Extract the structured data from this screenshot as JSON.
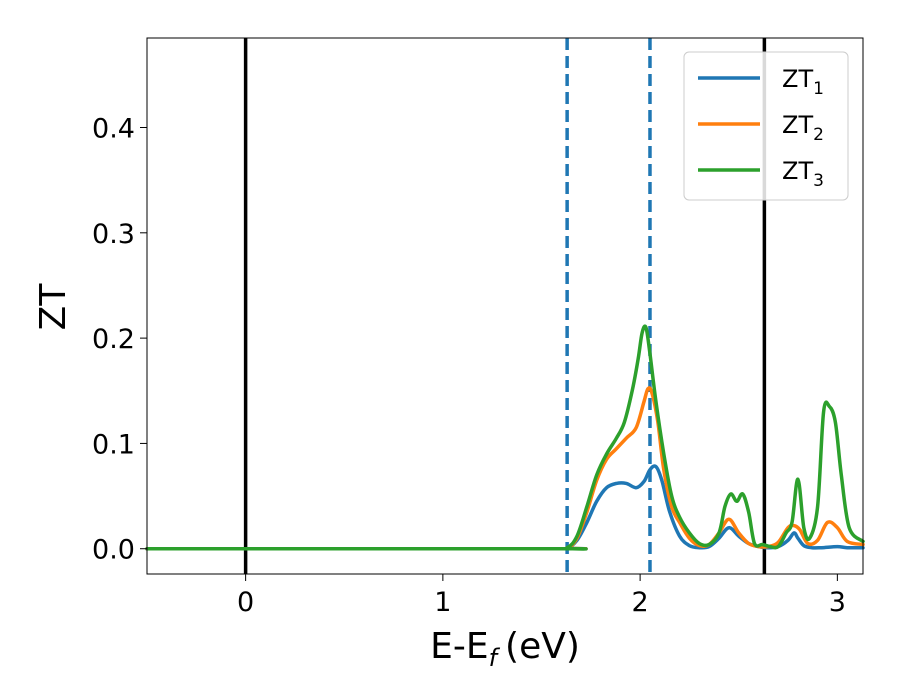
{
  "chart_data": {
    "type": "line",
    "xlabel": "E-E",
    "xlabel_sub": "f",
    "xlabel_unit": "(eV)",
    "ylabel": "ZT",
    "xlim": [
      -0.5,
      3.13
    ],
    "ylim": [
      -0.024,
      0.485
    ],
    "xticks": [
      0,
      1,
      2,
      3
    ],
    "xtick_labels": [
      "0",
      "1",
      "2",
      "3"
    ],
    "yticks": [
      0.0,
      0.1,
      0.2,
      0.3,
      0.4
    ],
    "ytick_labels": [
      "0.0",
      "0.1",
      "0.2",
      "0.3",
      "0.4"
    ],
    "grid": false,
    "legend_position": "top-right",
    "vlines": [
      {
        "x": 0.0,
        "style": "solid",
        "color": "#000000"
      },
      {
        "x": 1.63,
        "style": "dashed",
        "color": "#1f77b4"
      },
      {
        "x": 2.05,
        "style": "dashed",
        "color": "#1f77b4"
      },
      {
        "x": 2.63,
        "style": "solid",
        "color": "#000000"
      }
    ],
    "series": [
      {
        "name": "ZT",
        "sub": "1",
        "color": "#1f77b4",
        "x": [
          -0.5,
          1.55,
          1.63,
          1.68,
          1.73,
          1.78,
          1.83,
          1.88,
          1.93,
          1.98,
          2.02,
          2.05,
          2.08,
          2.11,
          2.15,
          2.2,
          2.25,
          2.3,
          2.35,
          2.4,
          2.45,
          2.5,
          2.55,
          2.6,
          2.65,
          2.7,
          2.75,
          2.78,
          2.8,
          2.83,
          2.87,
          2.92,
          3.0,
          3.05,
          3.13
        ],
        "y": [
          0.0,
          0.0,
          0.001,
          0.008,
          0.025,
          0.045,
          0.058,
          0.062,
          0.062,
          0.058,
          0.064,
          0.075,
          0.078,
          0.065,
          0.035,
          0.012,
          0.003,
          0.001,
          0.002,
          0.01,
          0.02,
          0.012,
          0.005,
          0.002,
          0.001,
          0.002,
          0.008,
          0.015,
          0.01,
          0.003,
          0.001,
          0.001,
          0.002,
          0.001,
          0.001
        ]
      },
      {
        "name": "ZT",
        "sub": "2",
        "color": "#ff7f0e",
        "x": [
          -0.5,
          1.55,
          1.63,
          1.68,
          1.73,
          1.78,
          1.83,
          1.88,
          1.93,
          1.98,
          2.02,
          2.04,
          2.06,
          2.09,
          2.12,
          2.16,
          2.2,
          2.25,
          2.3,
          2.35,
          2.4,
          2.45,
          2.5,
          2.55,
          2.6,
          2.65,
          2.7,
          2.75,
          2.78,
          2.81,
          2.85,
          2.9,
          2.95,
          3.0,
          3.05,
          3.13
        ],
        "y": [
          0.0,
          0.0,
          0.001,
          0.01,
          0.035,
          0.065,
          0.085,
          0.095,
          0.105,
          0.115,
          0.14,
          0.152,
          0.148,
          0.12,
          0.075,
          0.04,
          0.025,
          0.01,
          0.003,
          0.004,
          0.015,
          0.028,
          0.015,
          0.005,
          0.002,
          0.002,
          0.006,
          0.02,
          0.022,
          0.018,
          0.005,
          0.008,
          0.025,
          0.02,
          0.007,
          0.004
        ]
      },
      {
        "name": "ZT",
        "sub": "3",
        "color": "#2ca02c",
        "x": [
          -0.5,
          1.55,
          1.63,
          1.68,
          1.73,
          1.78,
          1.83,
          1.88,
          1.92,
          1.96,
          1.99,
          2.01,
          2.03,
          2.05,
          2.08,
          2.12,
          2.16,
          2.2,
          2.25,
          2.3,
          2.35,
          2.4,
          2.43,
          2.46,
          2.49,
          2.52,
          2.55,
          2.58,
          2.62,
          2.66,
          2.7,
          2.74,
          2.77,
          2.8,
          2.83,
          2.86,
          2.9,
          2.93,
          2.96,
          2.99,
          3.02,
          3.06,
          3.13
        ],
        "y": [
          0.0,
          0.0,
          0.001,
          0.012,
          0.04,
          0.07,
          0.09,
          0.105,
          0.12,
          0.15,
          0.18,
          0.205,
          0.21,
          0.185,
          0.14,
          0.09,
          0.05,
          0.03,
          0.015,
          0.005,
          0.004,
          0.015,
          0.04,
          0.052,
          0.045,
          0.052,
          0.035,
          0.005,
          0.004,
          0.002,
          0.002,
          0.015,
          0.025,
          0.066,
          0.02,
          0.01,
          0.04,
          0.13,
          0.135,
          0.12,
          0.07,
          0.02,
          0.007
        ]
      }
    ]
  }
}
